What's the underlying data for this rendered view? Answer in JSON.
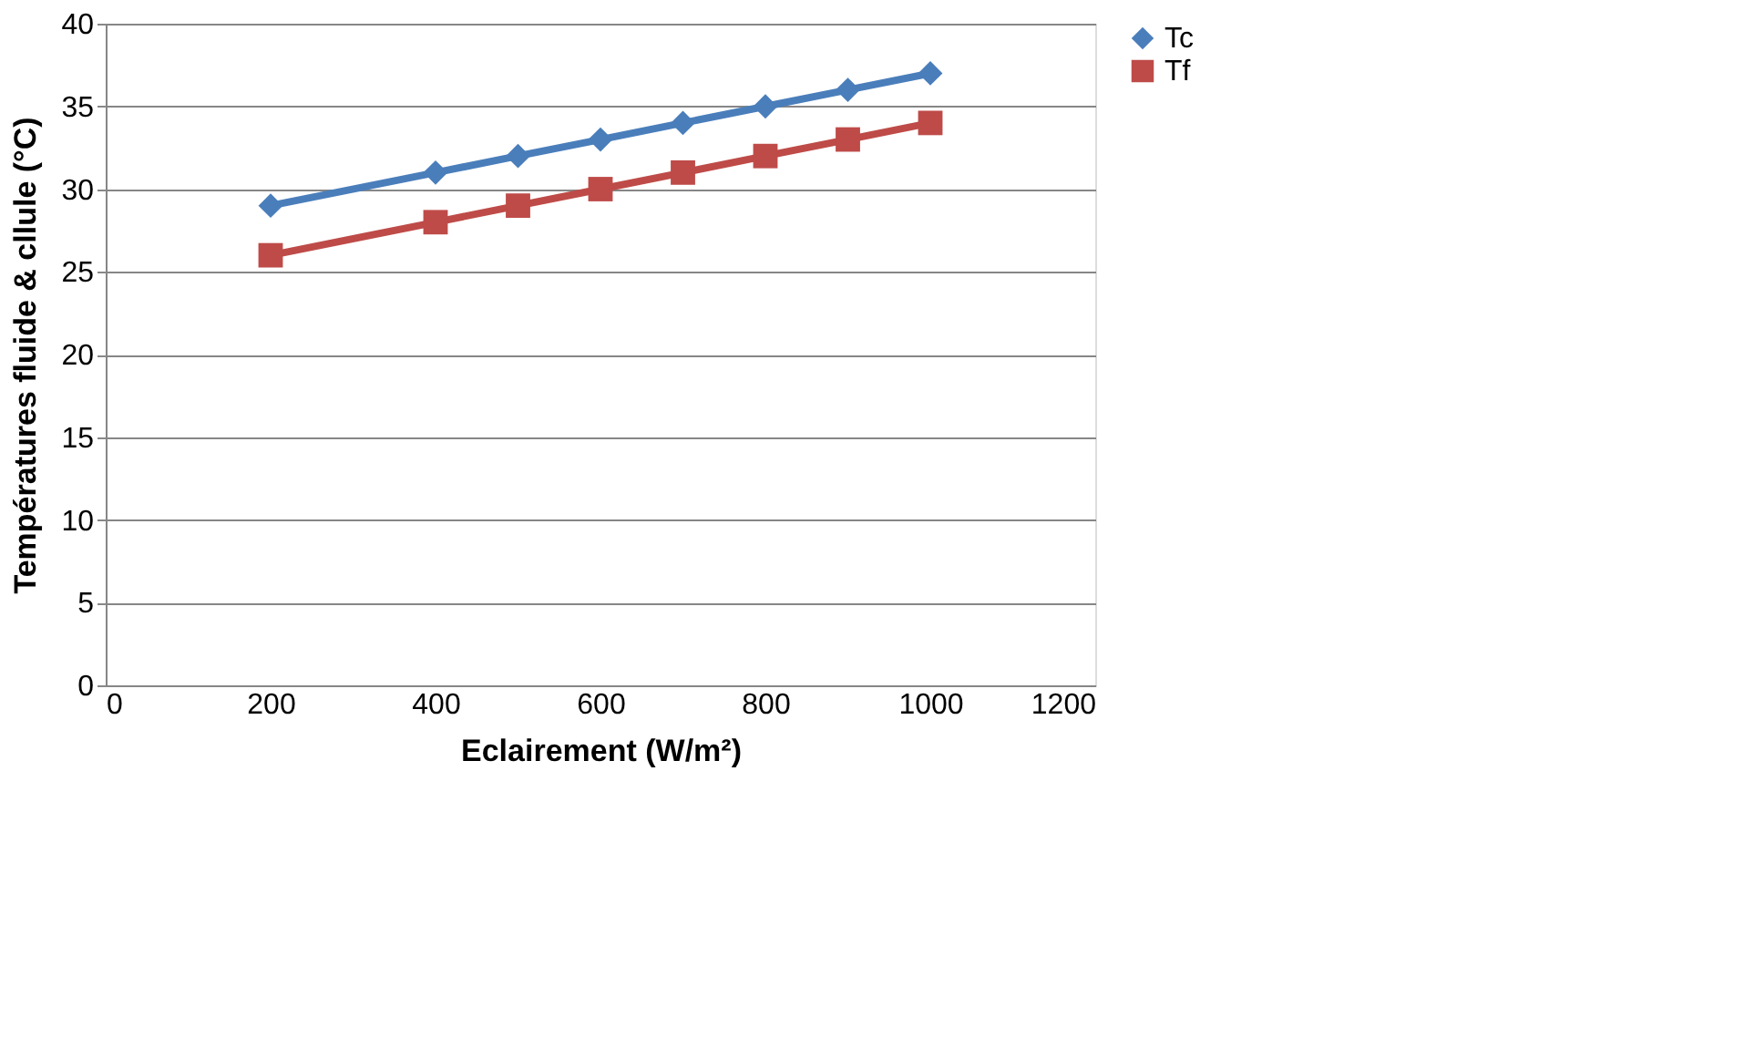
{
  "chart_data": {
    "type": "line",
    "xlabel": "Eclairement (W/m²)",
    "ylabel": "Températures fluide & cllule (°C)",
    "x": [
      200,
      400,
      500,
      600,
      700,
      800,
      900,
      1000
    ],
    "series": [
      {
        "name": "Tc",
        "color": "#4a7ebb",
        "marker": "diamond",
        "values": [
          29,
          31,
          32,
          33,
          34,
          35,
          36,
          37
        ]
      },
      {
        "name": "Tf",
        "color": "#be4b48",
        "marker": "square",
        "values": [
          26,
          28,
          29,
          30,
          31,
          32,
          33,
          34
        ]
      }
    ],
    "xlim": [
      0,
      1200
    ],
    "xticks": [
      0,
      200,
      400,
      600,
      800,
      1000,
      1200
    ],
    "ylim": [
      0,
      40
    ],
    "yticks": [
      0,
      5,
      10,
      15,
      20,
      25,
      30,
      35,
      40
    ],
    "grid": "y",
    "legend": "right",
    "line_style": "solid"
  }
}
